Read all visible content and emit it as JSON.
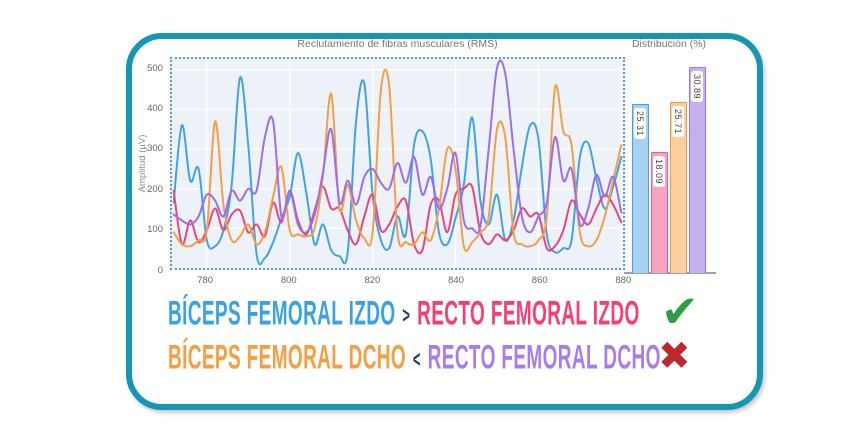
{
  "card": {
    "border_color": "#1596b3"
  },
  "chart_data": [
    {
      "type": "line",
      "title": "Reclutamiento de fibras musculares (RMS)",
      "xlabel": "",
      "ylabel": "Amplitud (µV)",
      "xlim": [
        771.6,
        880.4
      ],
      "ylim": [
        0,
        527
      ],
      "x_ticks": [
        780,
        800,
        820,
        840,
        860,
        880
      ],
      "y_ticks": [
        0,
        100,
        200,
        300,
        400,
        500
      ],
      "grid": true,
      "legend": "none",
      "plot_bg": "#edf2f9",
      "grid_color": "#ffffff",
      "frame": "dotted-blue",
      "x": [
        772,
        774,
        776,
        778,
        780,
        782,
        784,
        786,
        788,
        790,
        792,
        794,
        796,
        798,
        800,
        802,
        804,
        806,
        808,
        810,
        812,
        814,
        816,
        818,
        820,
        822,
        824,
        826,
        828,
        830,
        832,
        834,
        836,
        838,
        840,
        842,
        844,
        846,
        848,
        850,
        852,
        854,
        856,
        858,
        860,
        862,
        864,
        866,
        868,
        870,
        872,
        874,
        876,
        878,
        880
      ],
      "series": [
        {
          "name": "Bíceps femoral izdo",
          "color": "#3fa1e8",
          "values": [
            165,
            360,
            220,
            250,
            70,
            55,
            95,
            210,
            480,
            310,
            35,
            25,
            65,
            125,
            180,
            290,
            190,
            60,
            110,
            45,
            30,
            40,
            370,
            465,
            185,
            70,
            50,
            130,
            85,
            310,
            345,
            275,
            90,
            60,
            125,
            210,
            380,
            170,
            110,
            185,
            70,
            120,
            255,
            360,
            325,
            85,
            40,
            50,
            70,
            280,
            315,
            225,
            150,
            205,
            280
          ]
        },
        {
          "name": "Recto femoral izdo",
          "color": "#ef4377",
          "values": [
            195,
            60,
            120,
            65,
            95,
            150,
            95,
            135,
            145,
            90,
            110,
            80,
            165,
            115,
            195,
            120,
            85,
            145,
            205,
            150,
            150,
            95,
            60,
            130,
            185,
            95,
            110,
            155,
            170,
            60,
            45,
            160,
            170,
            90,
            185,
            200,
            205,
            90,
            60,
            85,
            70,
            95,
            150,
            130,
            135,
            50,
            55,
            95,
            170,
            135,
            110,
            150,
            185,
            160,
            115
          ]
        },
        {
          "name": "Bíceps femoral dcho",
          "color": "#f59e43",
          "values": [
            90,
            60,
            55,
            70,
            95,
            370,
            160,
            70,
            80,
            110,
            60,
            90,
            180,
            255,
            95,
            85,
            80,
            100,
            230,
            440,
            150,
            210,
            120,
            75,
            90,
            450,
            460,
            90,
            65,
            60,
            90,
            70,
            150,
            300,
            250,
            55,
            65,
            90,
            130,
            350,
            330,
            90,
            60,
            55,
            70,
            130,
            455,
            345,
            310,
            90,
            55,
            70,
            130,
            220,
            310
          ]
        },
        {
          "name": "Recto femoral dcho",
          "color": "#9a6df0",
          "values": [
            135,
            120,
            110,
            130,
            185,
            170,
            130,
            195,
            170,
            200,
            195,
            330,
            370,
            130,
            195,
            110,
            90,
            135,
            240,
            350,
            165,
            220,
            160,
            230,
            250,
            215,
            200,
            265,
            215,
            280,
            185,
            230,
            150,
            200,
            290,
            120,
            100,
            105,
            300,
            505,
            490,
            300,
            130,
            90,
            130,
            165,
            330,
            220,
            250,
            110,
            150,
            235,
            180,
            230,
            140
          ]
        }
      ]
    },
    {
      "type": "bar",
      "title": "Distribución (%)",
      "categories": [
        "Bíceps femoral izdo",
        "Recto femoral izdo",
        "Bíceps femoral dcho",
        "Recto femoral dcho"
      ],
      "values": [
        25.31,
        18.09,
        25.71,
        30.89
      ],
      "labels": [
        "25.31",
        "18.09",
        "25.71",
        "30.89"
      ],
      "ylim": [
        0,
        32.4
      ],
      "bar_colors": [
        {
          "fill": "#a5d2f3",
          "border": "#4d9fdd"
        },
        {
          "fill": "#f7a3c0",
          "border": "#ee5f8d"
        },
        {
          "fill": "#fbcf9e",
          "border": "#f09b4a"
        },
        {
          "fill": "#c6b1f0",
          "border": "#9d77e8"
        }
      ]
    }
  ],
  "comparison": {
    "op_color": "#1c3a5e",
    "rows": [
      {
        "left": "BÍCEPS FEMORAL IZDO",
        "op": ">",
        "right": "RECTO FEMORAL IZDO",
        "left_color": "#36a3e8",
        "right_color": "#fa3d71",
        "icon": "✔",
        "icon_color": "#2f9e41"
      },
      {
        "left": "BÍCEPS FEMORAL DCHO",
        "op": "<",
        "right": "RECTO FEMORAL DCHO",
        "left_color": "#f99e3e",
        "right_color": "#a87cf0",
        "icon": "✖",
        "icon_color": "#bf272f"
      }
    ]
  }
}
